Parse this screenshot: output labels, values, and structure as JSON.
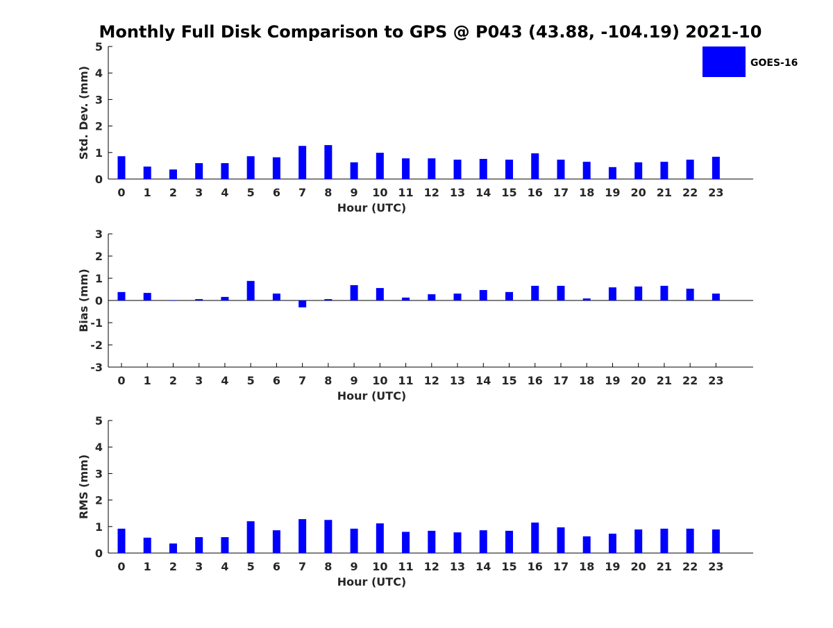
{
  "figure": {
    "title": "Monthly Full Disk Comparison to GPS @ P043 (43.88, -104.19) 2021-10"
  },
  "legend": {
    "label": "GOES-16",
    "color": "#0000ff",
    "placement": "top-right"
  },
  "chart_data": [
    {
      "type": "bar",
      "title": "Monthly Full Disk Comparison to GPS @ P043 (43.88, -104.19) 2021-10",
      "xlabel": "Hour (UTC)",
      "ylabel": "Std. Dev. (mm)",
      "ylim": [
        0,
        5
      ],
      "yticks": [
        "0",
        "1",
        "2",
        "3",
        "4",
        "5"
      ],
      "categories": [
        "0",
        "1",
        "2",
        "3",
        "4",
        "5",
        "6",
        "7",
        "8",
        "9",
        "10",
        "11",
        "12",
        "13",
        "14",
        "15",
        "16",
        "17",
        "18",
        "19",
        "20",
        "21",
        "22",
        "23"
      ],
      "series": [
        {
          "name": "GOES-16",
          "color": "#0000ff",
          "values": [
            0.86,
            0.47,
            0.36,
            0.6,
            0.6,
            0.86,
            0.82,
            1.25,
            1.28,
            0.63,
            0.99,
            0.78,
            0.78,
            0.73,
            0.76,
            0.73,
            0.97,
            0.73,
            0.65,
            0.45,
            0.63,
            0.65,
            0.73,
            0.84
          ]
        }
      ],
      "legend": "top-right",
      "grid": false
    },
    {
      "type": "bar",
      "xlabel": "Hour (UTC)",
      "ylabel": "Bias (mm)",
      "ylim": [
        -3,
        3
      ],
      "yticks": [
        "-3",
        "-2",
        "-1",
        "0",
        "1",
        "2",
        "3"
      ],
      "categories": [
        "0",
        "1",
        "2",
        "3",
        "4",
        "5",
        "6",
        "7",
        "8",
        "9",
        "10",
        "11",
        "12",
        "13",
        "14",
        "15",
        "16",
        "17",
        "18",
        "19",
        "20",
        "21",
        "22",
        "23"
      ],
      "series": [
        {
          "name": "GOES-16",
          "color": "#0000ff",
          "values": [
            0.38,
            0.34,
            0.0,
            0.06,
            0.16,
            0.88,
            0.31,
            -0.31,
            0.06,
            0.69,
            0.56,
            0.13,
            0.28,
            0.31,
            0.47,
            0.38,
            0.66,
            0.66,
            0.09,
            0.59,
            0.63,
            0.66,
            0.53,
            0.31
          ]
        }
      ],
      "grid": false
    },
    {
      "type": "bar",
      "xlabel": "Hour (UTC)",
      "ylabel": "RMS (mm)",
      "ylim": [
        0,
        5
      ],
      "yticks": [
        "0",
        "1",
        "2",
        "3",
        "4",
        "5"
      ],
      "categories": [
        "0",
        "1",
        "2",
        "3",
        "4",
        "5",
        "6",
        "7",
        "8",
        "9",
        "10",
        "11",
        "12",
        "13",
        "14",
        "15",
        "16",
        "17",
        "18",
        "19",
        "20",
        "21",
        "22",
        "23"
      ],
      "series": [
        {
          "name": "GOES-16",
          "color": "#0000ff",
          "values": [
            0.92,
            0.58,
            0.36,
            0.6,
            0.6,
            1.2,
            0.86,
            1.28,
            1.25,
            0.92,
            1.12,
            0.8,
            0.84,
            0.78,
            0.86,
            0.84,
            1.15,
            0.97,
            0.63,
            0.73,
            0.89,
            0.92,
            0.92,
            0.89
          ]
        }
      ],
      "grid": false
    }
  ]
}
